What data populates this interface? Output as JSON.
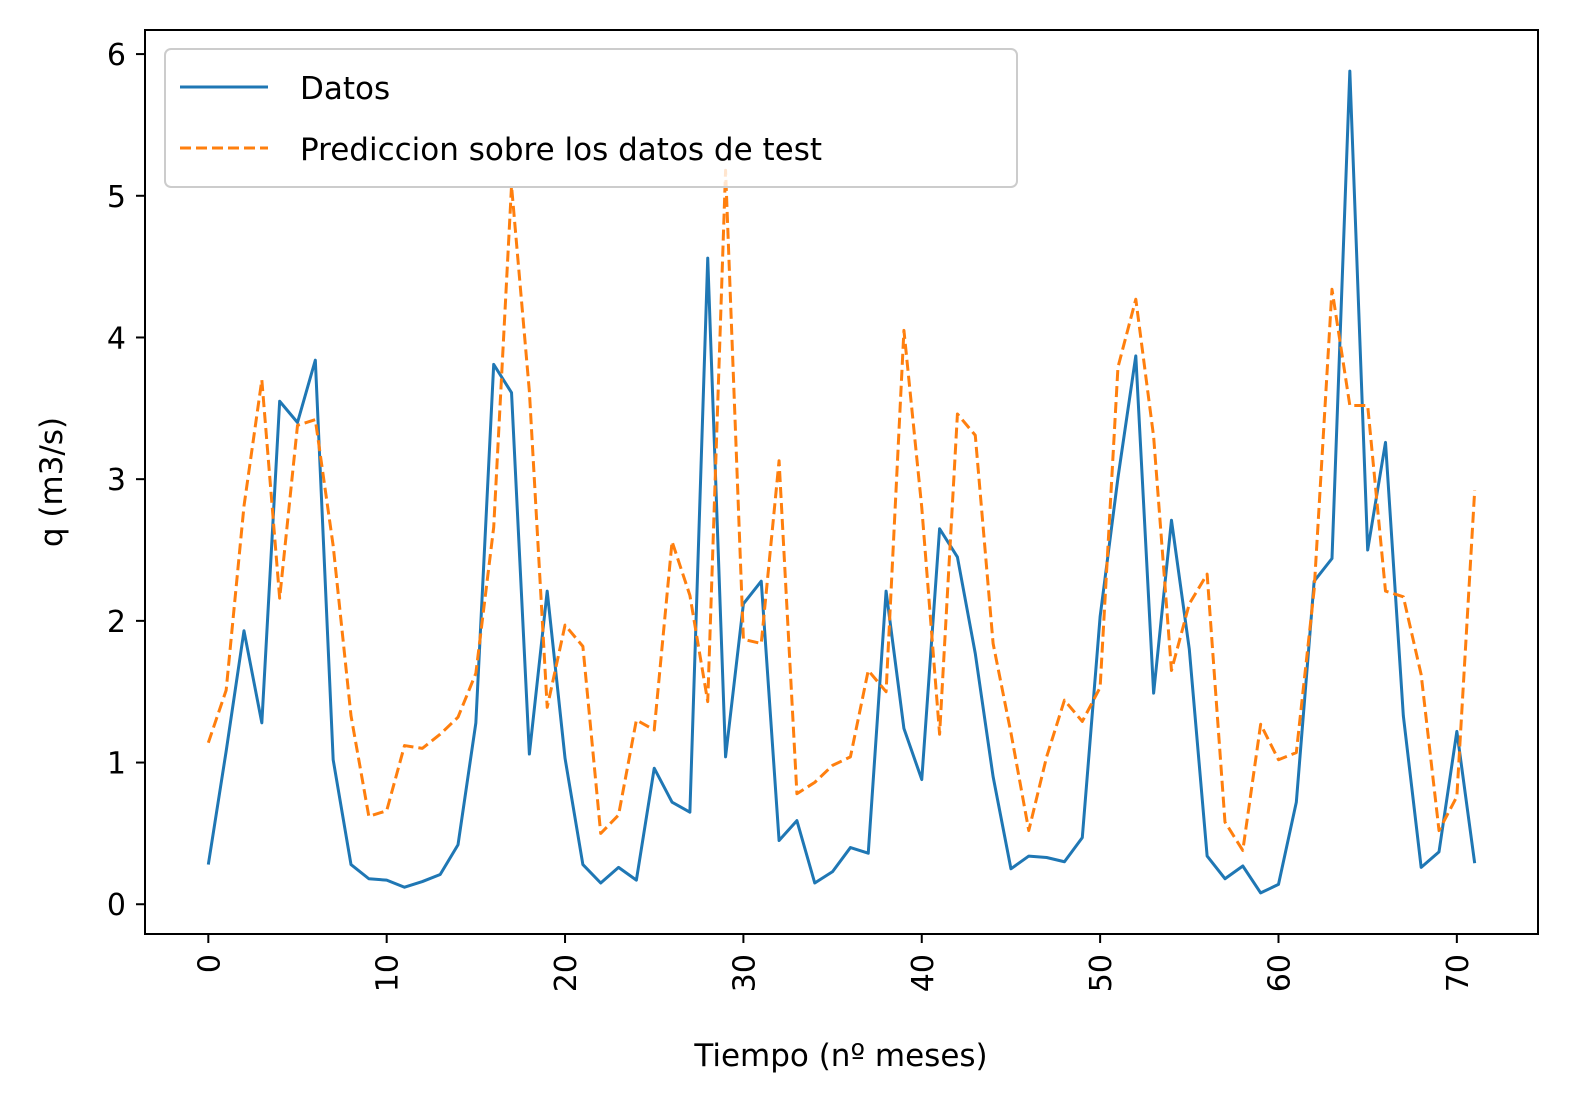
{
  "chart_data": {
    "type": "line",
    "title": "",
    "xlabel": "Tiempo (nº meses)",
    "ylabel": "q (m3/s)",
    "xlim": [
      -3.55,
      74.55
    ],
    "ylim": [
      -0.21,
      6.17
    ],
    "xticks": [
      0,
      10,
      20,
      30,
      40,
      50,
      60,
      70
    ],
    "yticks": [
      0,
      1,
      2,
      3,
      4,
      5,
      6
    ],
    "grid": false,
    "legend_placement": "upper-left",
    "series": [
      {
        "name": "Datos",
        "color": "#1f77b4",
        "dash": "solid",
        "values": [
          0.28,
          1.08,
          1.93,
          1.28,
          3.55,
          3.4,
          3.84,
          1.02,
          0.28,
          0.18,
          0.17,
          0.12,
          0.16,
          0.21,
          0.42,
          1.28,
          3.81,
          3.61,
          1.06,
          2.21,
          1.03,
          0.28,
          0.15,
          0.26,
          0.17,
          0.96,
          0.72,
          0.65,
          4.56,
          1.04,
          2.12,
          2.28,
          0.45,
          0.59,
          0.15,
          0.23,
          0.4,
          0.36,
          2.21,
          1.24,
          0.88,
          2.65,
          2.45,
          1.77,
          0.9,
          0.25,
          0.34,
          0.33,
          0.3,
          0.47,
          2.03,
          3.01,
          3.87,
          1.49,
          2.71,
          1.8,
          0.34,
          0.18,
          0.27,
          0.08,
          0.14,
          0.72,
          2.28,
          2.44,
          5.88,
          2.5,
          3.26,
          1.33,
          0.26,
          0.37,
          1.22,
          0.29
        ]
      },
      {
        "name": "Prediccion sobre los datos de test",
        "color": "#ff7f0e",
        "dash": "dashed",
        "values": [
          1.14,
          1.51,
          2.81,
          3.7,
          2.16,
          3.38,
          3.42,
          2.53,
          1.33,
          0.62,
          0.66,
          1.12,
          1.1,
          1.2,
          1.32,
          1.63,
          2.66,
          5.07,
          3.62,
          1.39,
          1.97,
          1.82,
          0.5,
          0.63,
          1.3,
          1.23,
          2.56,
          2.18,
          1.43,
          5.18,
          1.87,
          1.84,
          3.13,
          0.78,
          0.86,
          0.98,
          1.04,
          1.65,
          1.5,
          4.05,
          2.8,
          1.2,
          3.46,
          3.31,
          1.84,
          1.21,
          0.52,
          1.04,
          1.44,
          1.29,
          1.53,
          3.79,
          4.27,
          3.3,
          1.65,
          2.12,
          2.33,
          0.58,
          0.38,
          1.27,
          1.02,
          1.07,
          2.22,
          4.34,
          3.52,
          3.52,
          2.21,
          2.17,
          1.62,
          0.52,
          0.76,
          2.92
        ]
      }
    ]
  }
}
